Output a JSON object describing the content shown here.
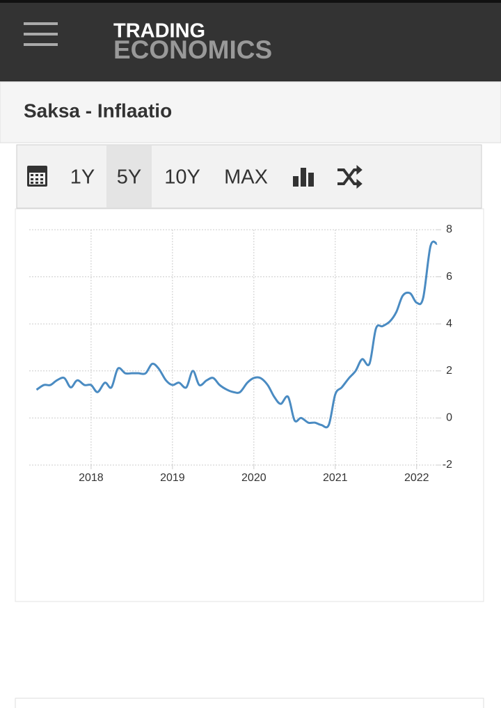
{
  "header": {
    "logo_top": "TRADING",
    "logo_bottom": "ECONOMICS"
  },
  "page_title": "Saksa - Inflaatio",
  "toolbar": {
    "buttons": [
      "1Y",
      "5Y",
      "10Y",
      "MAX"
    ],
    "selected": 1
  },
  "chart_data": {
    "type": "line",
    "x": [
      2017.33,
      2017.42,
      2017.5,
      2017.58,
      2017.67,
      2017.75,
      2017.83,
      2017.92,
      2018,
      2018.08,
      2018.17,
      2018.25,
      2018.33,
      2018.42,
      2018.5,
      2018.58,
      2018.67,
      2018.75,
      2018.83,
      2018.92,
      2019,
      2019.08,
      2019.17,
      2019.25,
      2019.33,
      2019.42,
      2019.5,
      2019.58,
      2019.67,
      2019.75,
      2019.83,
      2019.92,
      2020,
      2020.08,
      2020.17,
      2020.25,
      2020.33,
      2020.42,
      2020.5,
      2020.58,
      2020.67,
      2020.75,
      2020.83,
      2020.92,
      2021,
      2021.08,
      2021.17,
      2021.25,
      2021.33,
      2021.42,
      2021.5,
      2021.58,
      2021.67,
      2021.75,
      2021.83,
      2021.92,
      2022,
      2022.08,
      2022.17,
      2022.25
    ],
    "series": [
      {
        "name": "Inflaatio",
        "color": "#4a8bc2",
        "values": [
          1.2,
          1.4,
          1.4,
          1.6,
          1.7,
          1.3,
          1.6,
          1.4,
          1.4,
          1.1,
          1.5,
          1.3,
          2.1,
          1.9,
          1.9,
          1.9,
          1.9,
          2.3,
          2.1,
          1.6,
          1.4,
          1.5,
          1.3,
          2.0,
          1.4,
          1.6,
          1.7,
          1.4,
          1.2,
          1.1,
          1.1,
          1.5,
          1.7,
          1.7,
          1.4,
          0.9,
          0.6,
          0.9,
          -0.1,
          0.0,
          -0.2,
          -0.2,
          -0.3,
          -0.3,
          1.0,
          1.3,
          1.7,
          2.0,
          2.5,
          2.3,
          3.8,
          3.9,
          4.1,
          4.5,
          5.2,
          5.3,
          4.9,
          5.1,
          7.3,
          7.4
        ]
      }
    ],
    "xlim": [
      2017.24,
      2022.25
    ],
    "xticks": [
      2018,
      2019,
      2020,
      2021,
      2022
    ],
    "ylim": [
      -2,
      8
    ],
    "yticks": [
      -2,
      0,
      2,
      4,
      6,
      8
    ],
    "grid": true
  }
}
